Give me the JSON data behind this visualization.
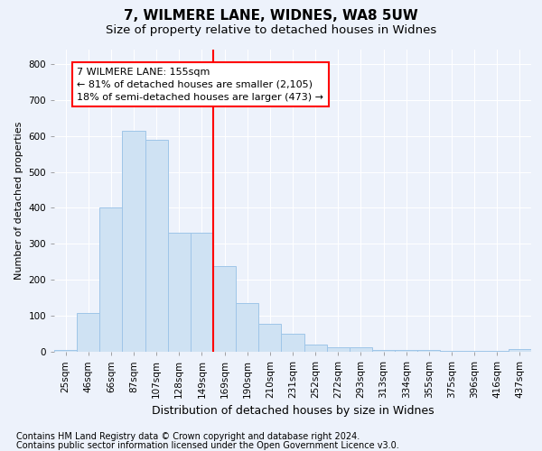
{
  "title1": "7, WILMERE LANE, WIDNES, WA8 5UW",
  "title2": "Size of property relative to detached houses in Widnes",
  "xlabel": "Distribution of detached houses by size in Widnes",
  "ylabel": "Number of detached properties",
  "categories": [
    "25sqm",
    "46sqm",
    "66sqm",
    "87sqm",
    "107sqm",
    "128sqm",
    "149sqm",
    "169sqm",
    "190sqm",
    "210sqm",
    "231sqm",
    "252sqm",
    "272sqm",
    "293sqm",
    "313sqm",
    "334sqm",
    "355sqm",
    "375sqm",
    "396sqm",
    "416sqm",
    "437sqm"
  ],
  "values": [
    5,
    107,
    400,
    615,
    590,
    330,
    330,
    237,
    135,
    78,
    50,
    20,
    13,
    13,
    5,
    5,
    5,
    2,
    2,
    2,
    8
  ],
  "bar_color": "#cfe2f3",
  "bar_edge_color": "#9fc5e8",
  "marker_line_index": 6.5,
  "annotation_line1": "7 WILMERE LANE: 155sqm",
  "annotation_line2": "← 81% of detached houses are smaller (2,105)",
  "annotation_line3": "18% of semi-detached houses are larger (473) →",
  "ylim": [
    0,
    840
  ],
  "yticks": [
    0,
    100,
    200,
    300,
    400,
    500,
    600,
    700,
    800
  ],
  "footnote1": "Contains HM Land Registry data © Crown copyright and database right 2024.",
  "footnote2": "Contains public sector information licensed under the Open Government Licence v3.0.",
  "background_color": "#edf2fb",
  "grid_color": "#ffffff",
  "title1_fontsize": 11,
  "title2_fontsize": 9.5,
  "xlabel_fontsize": 9,
  "ylabel_fontsize": 8,
  "tick_fontsize": 7.5,
  "footnote_fontsize": 7,
  "annotation_fontsize": 8
}
